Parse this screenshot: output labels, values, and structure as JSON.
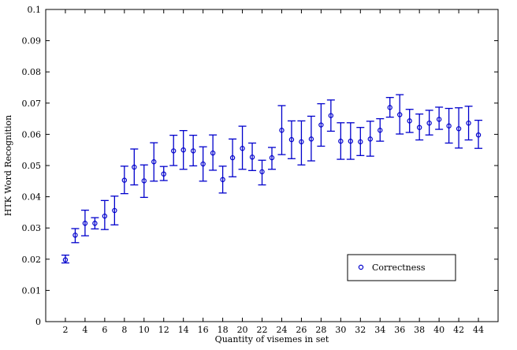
{
  "chart_data": {
    "type": "scatter",
    "title": "",
    "xlabel": "Quantity of visemes in set",
    "ylabel": "HTK Word Recognition",
    "xlim": [
      0,
      46
    ],
    "ylim": [
      0,
      0.1
    ],
    "grid": false,
    "legend_position": "bottom-right",
    "x_ticks": [
      2,
      4,
      6,
      8,
      10,
      12,
      14,
      16,
      18,
      20,
      22,
      24,
      26,
      28,
      30,
      32,
      34,
      36,
      38,
      40,
      42,
      44
    ],
    "y_ticks": [
      0,
      0.01,
      0.02,
      0.03,
      0.04,
      0.05,
      0.06,
      0.07,
      0.08,
      0.09,
      0.1
    ],
    "y_tick_labels": [
      "0",
      "0.01",
      "0.02",
      "0.03",
      "0.04",
      "0.05",
      "0.06",
      "0.07",
      "0.08",
      "0.09",
      "0.1"
    ],
    "series": [
      {
        "name": "Correctness",
        "color": "#0000cc",
        "marker": "circle",
        "x": [
          2,
          3,
          4,
          5,
          6,
          7,
          8,
          9,
          10,
          11,
          12,
          13,
          14,
          15,
          16,
          17,
          18,
          19,
          20,
          21,
          22,
          23,
          24,
          25,
          26,
          27,
          28,
          29,
          30,
          31,
          32,
          33,
          34,
          35,
          36,
          37,
          38,
          39,
          40,
          41,
          42,
          43,
          44
        ],
        "y": [
          0.0198,
          0.0277,
          0.0315,
          0.0315,
          0.0338,
          0.0356,
          0.0453,
          0.0495,
          0.0451,
          0.0512,
          0.0473,
          0.0547,
          0.055,
          0.0547,
          0.0505,
          0.054,
          0.0455,
          0.0525,
          0.0555,
          0.0527,
          0.048,
          0.0525,
          0.0613,
          0.0583,
          0.0576,
          0.0585,
          0.063,
          0.066,
          0.0578,
          0.0578,
          0.0576,
          0.0585,
          0.0613,
          0.0686,
          0.0663,
          0.0643,
          0.0622,
          0.0636,
          0.0648,
          0.0627,
          0.0618,
          0.0636,
          0.0598
        ],
        "error_low": [
          0.0188,
          0.0253,
          0.0275,
          0.0297,
          0.0295,
          0.031,
          0.041,
          0.0438,
          0.0398,
          0.045,
          0.0452,
          0.05,
          0.0488,
          0.0499,
          0.045,
          0.0485,
          0.0412,
          0.0464,
          0.0488,
          0.0484,
          0.0438,
          0.0488,
          0.0535,
          0.0522,
          0.0502,
          0.0515,
          0.0562,
          0.061,
          0.052,
          0.052,
          0.0532,
          0.053,
          0.0578,
          0.0655,
          0.0601,
          0.0606,
          0.0582,
          0.0598,
          0.0616,
          0.0572,
          0.0556,
          0.0582,
          0.0555
        ],
        "error_high": [
          0.0213,
          0.0298,
          0.0357,
          0.0333,
          0.0388,
          0.0402,
          0.0498,
          0.0553,
          0.0502,
          0.0573,
          0.0497,
          0.0597,
          0.0612,
          0.0597,
          0.056,
          0.0598,
          0.0498,
          0.0585,
          0.0626,
          0.0572,
          0.0517,
          0.0558,
          0.0692,
          0.0643,
          0.0643,
          0.0658,
          0.0698,
          0.071,
          0.0637,
          0.0637,
          0.0622,
          0.0642,
          0.065,
          0.0718,
          0.0727,
          0.068,
          0.0665,
          0.0677,
          0.0687,
          0.0683,
          0.0685,
          0.069,
          0.0645
        ]
      }
    ]
  }
}
